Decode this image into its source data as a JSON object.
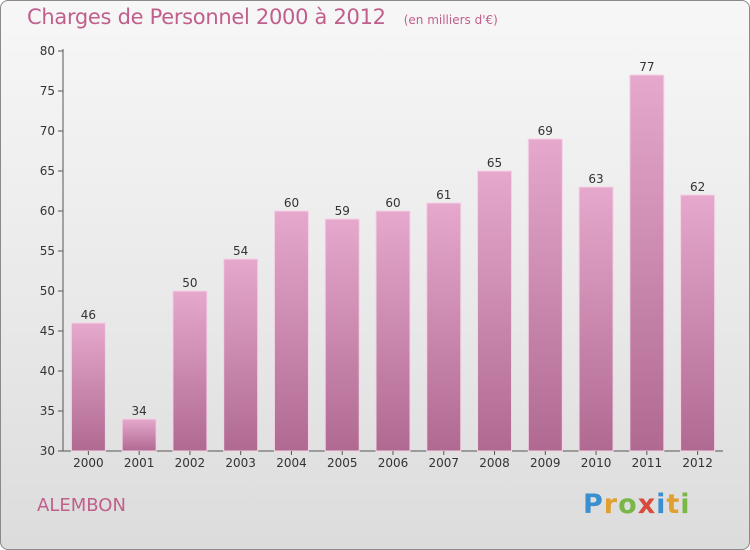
{
  "header": {
    "title": "Charges de Personnel 2000 à 2012",
    "subtitle": "(en milliers d'€)"
  },
  "commune": "ALEMBON",
  "logo": {
    "text": "Proxiti",
    "letters": [
      {
        "ch": "P",
        "color": "#3a8fd0"
      },
      {
        "ch": "r",
        "color": "#e0a030"
      },
      {
        "ch": "o",
        "color": "#7ab648"
      },
      {
        "ch": "x",
        "color": "#d94a3a"
      },
      {
        "ch": "i",
        "color": "#3a8fd0"
      },
      {
        "ch": "t",
        "color": "#e0a030"
      },
      {
        "ch": "i",
        "color": "#7ab648"
      }
    ]
  },
  "colors": {
    "bar_top": "#e6a8cd",
    "bar_bottom": "#b06a92",
    "accent": "#c05f8c"
  },
  "chart_data": {
    "type": "bar",
    "categories": [
      "2000",
      "2001",
      "2002",
      "2003",
      "2004",
      "2005",
      "2006",
      "2007",
      "2008",
      "2009",
      "2010",
      "2011",
      "2012"
    ],
    "values": [
      46,
      34,
      50,
      54,
      60,
      59,
      60,
      61,
      65,
      69,
      63,
      77,
      62
    ],
    "ylim": [
      30,
      80
    ],
    "yticks": [
      30,
      35,
      40,
      45,
      50,
      55,
      60,
      65,
      70,
      75,
      80
    ],
    "title": "Charges de Personnel 2000 à 2012",
    "xlabel": "",
    "ylabel": "",
    "grid": false
  }
}
